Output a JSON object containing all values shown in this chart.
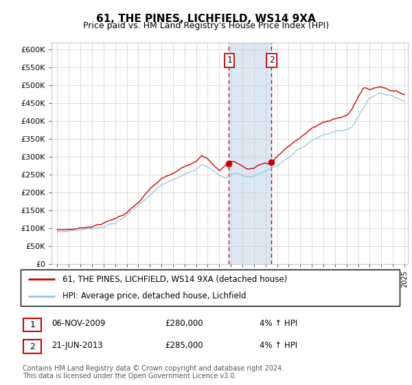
{
  "title": "61, THE PINES, LICHFIELD, WS14 9XA",
  "subtitle": "Price paid vs. HM Land Registry's House Price Index (HPI)",
  "ylabel_ticks": [
    "£0",
    "£50K",
    "£100K",
    "£150K",
    "£200K",
    "£250K",
    "£300K",
    "£350K",
    "£400K",
    "£450K",
    "£500K",
    "£550K",
    "£600K"
  ],
  "ylim": [
    0,
    620000
  ],
  "x_start_year": 1995,
  "x_end_year": 2025,
  "sale1_date": 2009.83,
  "sale1_price": 280000,
  "sale2_date": 2013.47,
  "sale2_price": 285000,
  "shade_color": "#dce9f5",
  "hpi_color": "#92c5de",
  "price_color": "#cc0000",
  "vline_color": "#cc0000",
  "legend_line1": "61, THE PINES, LICHFIELD, WS14 9XA (detached house)",
  "legend_line2": "HPI: Average price, detached house, Lichfield",
  "table_row1": [
    "1",
    "06-NOV-2009",
    "£280,000",
    "4% ↑ HPI"
  ],
  "table_row2": [
    "2",
    "21-JUN-2013",
    "£285,000",
    "4% ↑ HPI"
  ],
  "footer": "Contains HM Land Registry data © Crown copyright and database right 2024.\nThis data is licensed under the Open Government Licence v3.0.",
  "hpi_control_pts_x": [
    1995,
    1996,
    1997,
    1998,
    1999,
    2000,
    2001,
    2002,
    2003,
    2004,
    2005,
    2006,
    2007,
    2007.5,
    2008,
    2008.5,
    2009,
    2009.5,
    2010,
    2010.5,
    2011,
    2011.5,
    2012,
    2012.5,
    2013,
    2013.5,
    2014,
    2015,
    2016,
    2017,
    2018,
    2019,
    2020,
    2020.5,
    2021,
    2021.5,
    2022,
    2022.5,
    2023,
    2023.5,
    2024,
    2024.5,
    2025
  ],
  "hpi_control_pts_y": [
    90000,
    93000,
    97000,
    103000,
    112000,
    122000,
    142000,
    168000,
    200000,
    228000,
    242000,
    258000,
    272000,
    285000,
    278000,
    268000,
    255000,
    248000,
    256000,
    264000,
    258000,
    252000,
    254000,
    260000,
    265000,
    272000,
    280000,
    300000,
    320000,
    340000,
    355000,
    362000,
    368000,
    378000,
    405000,
    435000,
    460000,
    468000,
    475000,
    470000,
    468000,
    460000,
    455000
  ],
  "price_control_pts_x": [
    1995,
    1996,
    1997,
    1998,
    1999,
    2000,
    2001,
    2002,
    2003,
    2004,
    2005,
    2006,
    2007,
    2007.5,
    2008,
    2008.5,
    2009,
    2009.5,
    2010,
    2010.5,
    2011,
    2011.5,
    2012,
    2012.5,
    2013,
    2013.47,
    2013.5,
    2014,
    2015,
    2016,
    2017,
    2018,
    2019,
    2020,
    2020.5,
    2021,
    2021.5,
    2022,
    2022.5,
    2023,
    2023.5,
    2024,
    2024.5,
    2025
  ],
  "price_control_pts_y": [
    95000,
    97000,
    101000,
    108000,
    118000,
    130000,
    148000,
    175000,
    210000,
    238000,
    252000,
    270000,
    290000,
    310000,
    300000,
    280000,
    265000,
    280000,
    292000,
    288000,
    278000,
    270000,
    275000,
    285000,
    290000,
    285000,
    290000,
    308000,
    335000,
    360000,
    385000,
    400000,
    415000,
    420000,
    440000,
    475000,
    500000,
    495000,
    500000,
    505000,
    500000,
    495000,
    490000,
    485000
  ]
}
